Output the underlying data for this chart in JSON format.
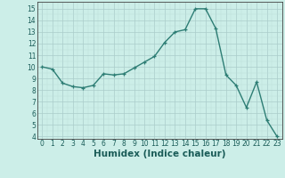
{
  "x": [
    0,
    1,
    2,
    3,
    4,
    5,
    6,
    7,
    8,
    9,
    10,
    11,
    12,
    13,
    14,
    15,
    16,
    17,
    18,
    19,
    20,
    21,
    22,
    23
  ],
  "y": [
    10,
    9.8,
    8.6,
    8.3,
    8.2,
    8.4,
    9.4,
    9.3,
    9.4,
    9.9,
    10.4,
    10.9,
    12.1,
    13.0,
    13.2,
    15.0,
    15.0,
    13.3,
    9.3,
    8.4,
    6.5,
    8.7,
    5.4,
    4.0
  ],
  "line_color": "#2d7d74",
  "marker": "+",
  "marker_size": 3.5,
  "linewidth": 1.0,
  "bg_color": "#cceee8",
  "grid_major_color": "#aaccca",
  "grid_minor_color": "#bbddd9",
  "xlabel": "Humidex (Indice chaleur)",
  "xlabel_fontsize": 7.5,
  "xlim": [
    -0.5,
    23.5
  ],
  "ylim": [
    3.8,
    15.6
  ],
  "yticks": [
    4,
    5,
    6,
    7,
    8,
    9,
    10,
    11,
    12,
    13,
    14,
    15
  ],
  "xticks": [
    0,
    1,
    2,
    3,
    4,
    5,
    6,
    7,
    8,
    9,
    10,
    11,
    12,
    13,
    14,
    15,
    16,
    17,
    18,
    19,
    20,
    21,
    22,
    23
  ],
  "tick_fontsize": 5.5,
  "spine_color": "#444444",
  "text_color": "#1a5c58"
}
